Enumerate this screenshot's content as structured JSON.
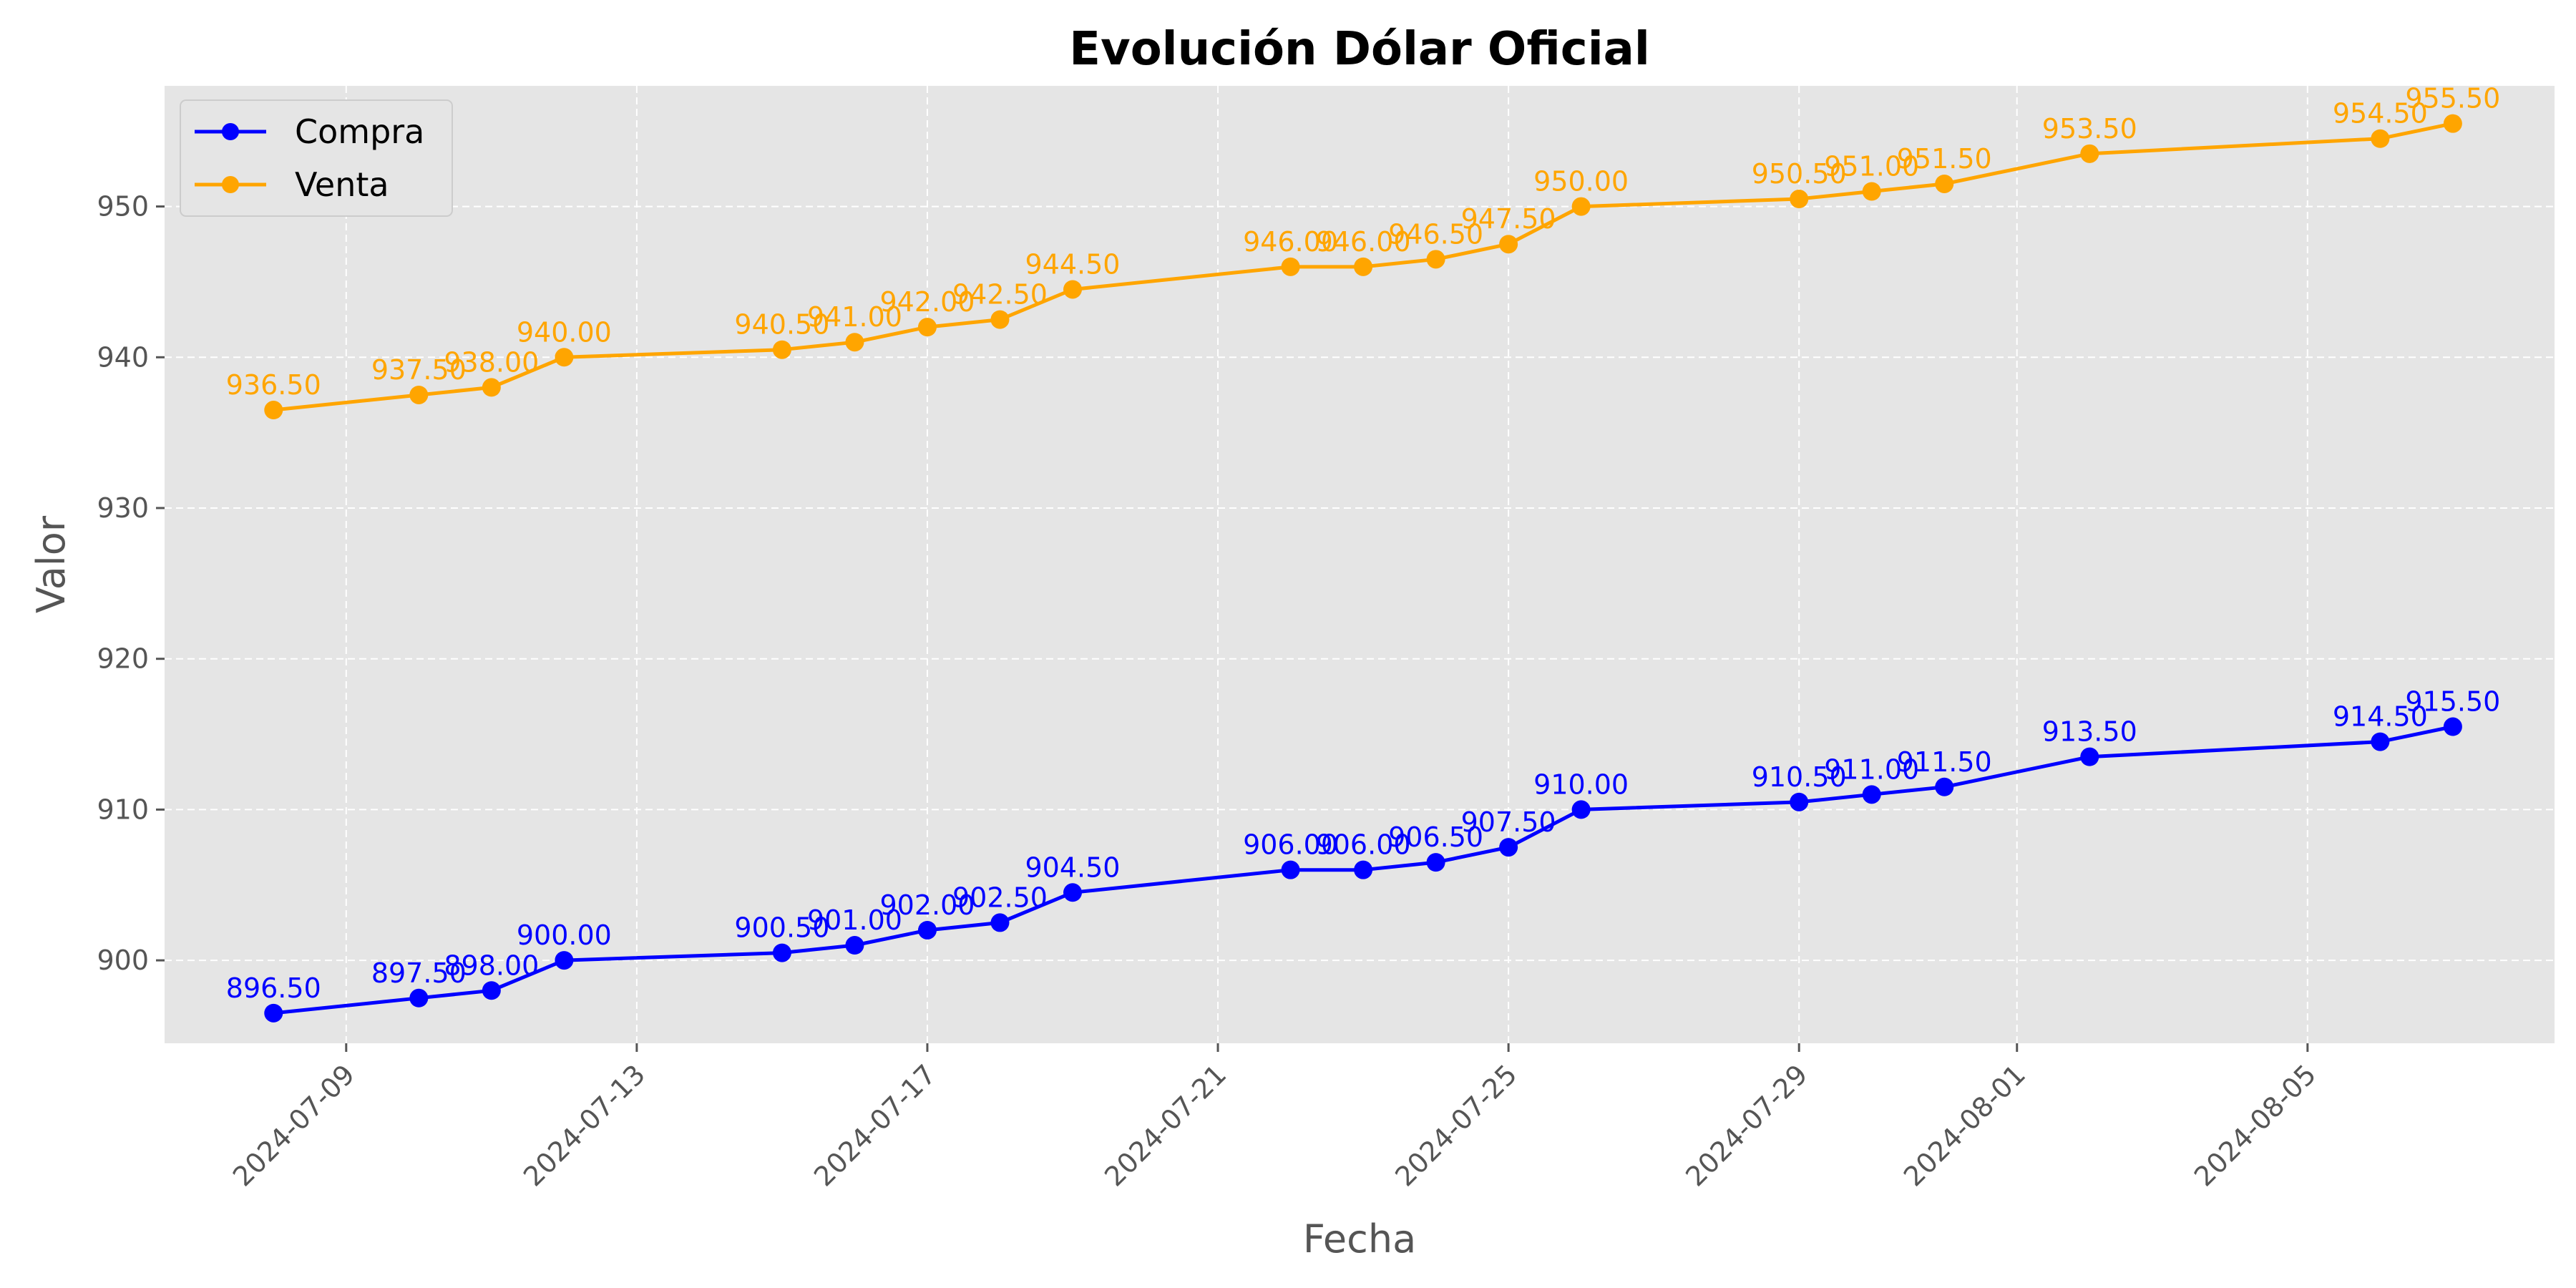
{
  "chart_data": {
    "type": "line",
    "title": "Evolución Dólar Oficial",
    "xlabel": "Fecha",
    "ylabel": "Valor",
    "x": [
      "2024-07-08",
      "2024-07-10",
      "2024-07-11",
      "2024-07-12",
      "2024-07-15",
      "2024-07-16",
      "2024-07-17",
      "2024-07-18",
      "2024-07-19",
      "2024-07-22",
      "2024-07-23",
      "2024-07-24",
      "2024-07-25",
      "2024-07-26",
      "2024-07-29",
      "2024-07-30",
      "2024-07-31",
      "2024-08-02",
      "2024-08-06",
      "2024-08-07"
    ],
    "xticks": [
      "2024-07-09",
      "2024-07-13",
      "2024-07-17",
      "2024-07-21",
      "2024-07-25",
      "2024-07-29",
      "2024-08-01",
      "2024-08-05"
    ],
    "ylim": [
      894.5,
      958.0
    ],
    "yticks": [
      900,
      910,
      920,
      930,
      940,
      950
    ],
    "grid": true,
    "legend_position": "top-left",
    "series": [
      {
        "name": "Compra",
        "color": "#0000ff",
        "values": [
          896.5,
          897.5,
          898.0,
          900.0,
          900.5,
          901.0,
          902.0,
          902.5,
          904.5,
          906.0,
          906.0,
          906.5,
          907.5,
          910.0,
          910.5,
          911.0,
          911.5,
          913.5,
          914.5,
          915.5
        ],
        "labels": [
          "896.50",
          "897.50",
          "898.00",
          "900.00",
          "900.50",
          "901.00",
          "902.00",
          "902.50",
          "904.50",
          "906.00",
          "906.00",
          "906.50",
          "907.50",
          "910.00",
          "910.50",
          "911.00",
          "911.50",
          "913.50",
          "914.50",
          "915.50"
        ]
      },
      {
        "name": "Venta",
        "color": "#ffa500",
        "values": [
          936.5,
          937.5,
          938.0,
          940.0,
          940.5,
          941.0,
          942.0,
          942.5,
          944.5,
          946.0,
          946.0,
          946.5,
          947.5,
          950.0,
          950.5,
          951.0,
          951.5,
          953.5,
          954.5,
          955.5
        ],
        "labels": [
          "936.50",
          "937.50",
          "938.00",
          "940.00",
          "940.50",
          "941.00",
          "942.00",
          "942.50",
          "944.50",
          "946.00",
          "946.00",
          "946.50",
          "947.50",
          "950.00",
          "950.50",
          "951.00",
          "951.50",
          "953.50",
          "954.50",
          "955.50"
        ]
      }
    ]
  }
}
